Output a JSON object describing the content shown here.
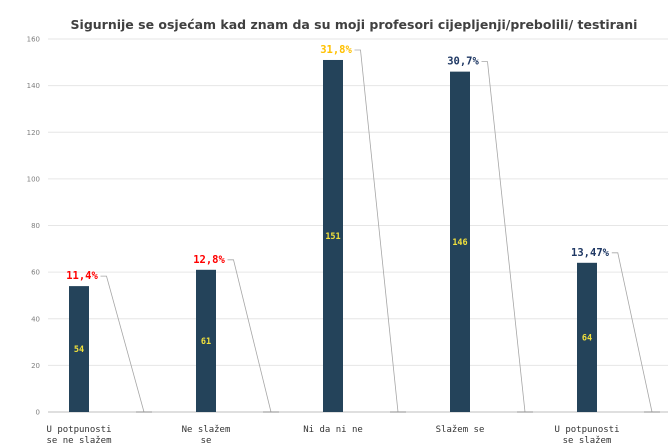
{
  "chart_data": {
    "type": "bar",
    "title": "Sigurnije se osjećam kad znam da su moji profesori cijepljenji/prebolili/ testirani",
    "xlabel": "",
    "ylabel": "",
    "ylim": [
      0,
      160
    ],
    "yticks": [
      0,
      20,
      40,
      60,
      80,
      100,
      120,
      140,
      160
    ],
    "grid": true,
    "legend": "none",
    "bar_color": "#24435a",
    "value_label_color": "#f2e13c",
    "categories": [
      [
        "U potpunosti",
        "se ne slažem"
      ],
      [
        "Ne slažem",
        "se"
      ],
      [
        "Ni da ni ne"
      ],
      [
        "Slažem se"
      ],
      [
        "U potpunosti",
        "se slažem"
      ]
    ],
    "values": [
      54,
      61,
      151,
      146,
      64
    ],
    "value_labels": [
      "54",
      "61",
      "151",
      "146",
      "64"
    ],
    "percent_labels": [
      "11,4%",
      "12,8%",
      "31,8%",
      "30,7%",
      "13,47%"
    ],
    "percent_colors": [
      "#ff0000",
      "#ff0000",
      "#ffc000",
      "#1f3864",
      "#1f3864"
    ],
    "leader_line_color": "#a6a6a6"
  }
}
